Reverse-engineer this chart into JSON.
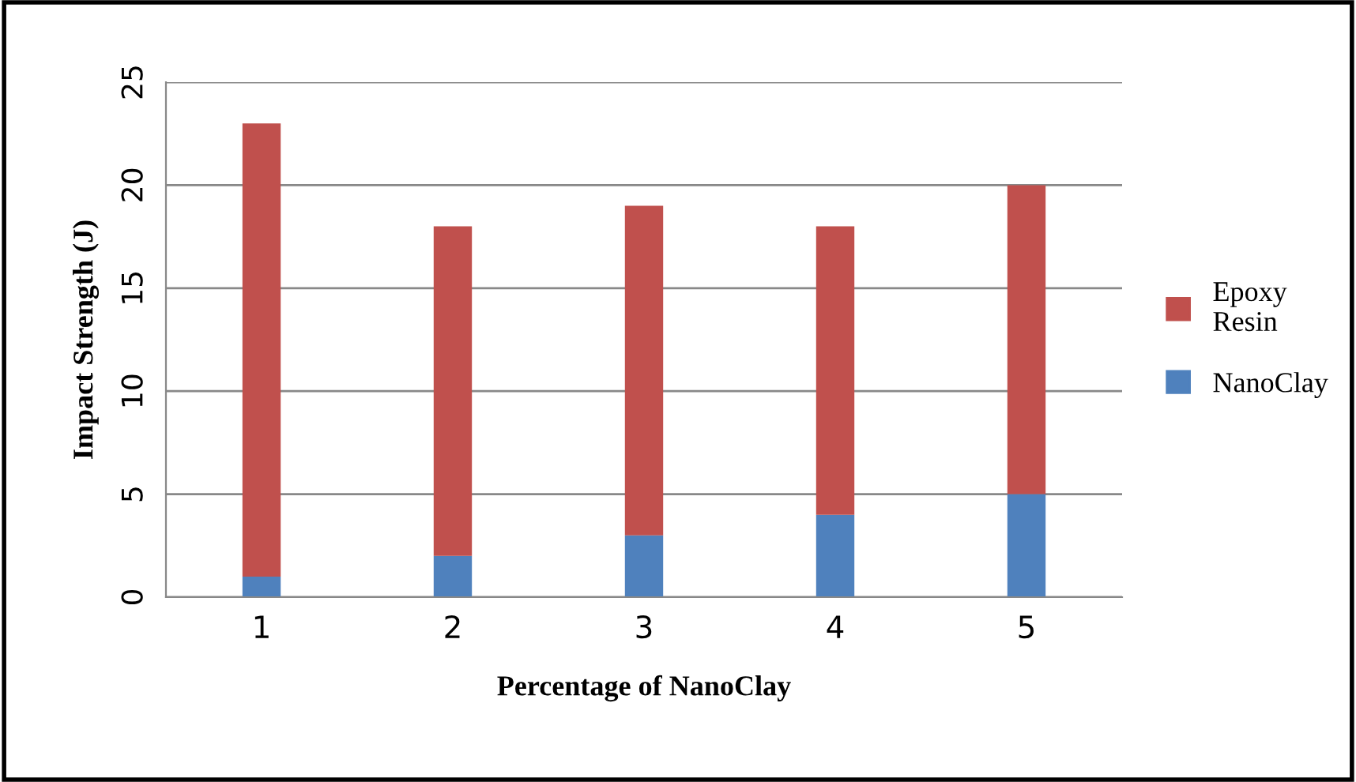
{
  "chart_data": {
    "type": "bar",
    "stacked": true,
    "xlabel": "Percentage of NanoClay",
    "ylabel": "Impact Strength (J)",
    "categories": [
      "1",
      "2",
      "3",
      "4",
      "5"
    ],
    "series": [
      {
        "name": "NanoClay",
        "color": "#4f81bd",
        "values": [
          1,
          2,
          3,
          4,
          5
        ]
      },
      {
        "name": "Epoxy\nResin",
        "color": "#c0504d",
        "values": [
          22,
          16,
          16,
          14,
          15
        ]
      }
    ],
    "ylim": [
      0,
      25
    ],
    "yticks": [
      0,
      5,
      10,
      15,
      20,
      25
    ],
    "grid": "y",
    "legend": "right"
  }
}
